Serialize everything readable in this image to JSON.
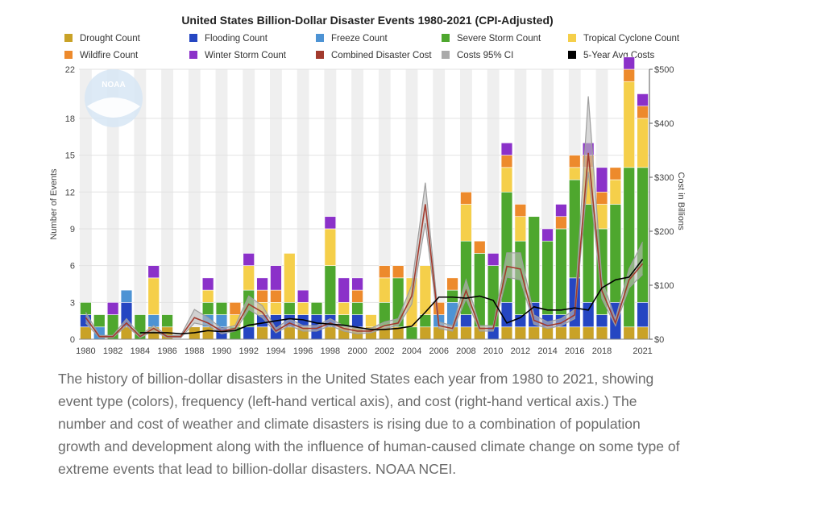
{
  "chart_data": {
    "type": "bar",
    "title": "United States Billion-Dollar Disaster Events 1980-2021 (CPI-Adjusted)",
    "ylabel": "Number of Events",
    "y2label": "Cost in Billions",
    "ylim": [
      0,
      22
    ],
    "y2lim": [
      0,
      500
    ],
    "y_ticks": [
      0,
      3,
      6,
      9,
      12,
      15,
      18,
      22
    ],
    "y2_ticks": [
      "$0",
      "$100",
      "$200",
      "$300",
      "$400",
      "$500"
    ],
    "x_ticks": [
      "1980",
      "1982",
      "1984",
      "1986",
      "1988",
      "1990",
      "1992",
      "1994",
      "1996",
      "1998",
      "2000",
      "2002",
      "2004",
      "2006",
      "2008",
      "2010",
      "2012",
      "2014",
      "2016",
      "2018",
      "2021"
    ],
    "legend_rows": [
      [
        "Drought Count",
        "Flooding Count",
        "Freeze Count",
        "Severe Storm Count",
        "Tropical Cyclone Count"
      ],
      [
        "Wildfire Count",
        "Winter Storm Count",
        "Combined Disaster Cost",
        "Costs 95% CI",
        "5-Year Avg Costs"
      ]
    ],
    "legend_colors": [
      [
        "#c9a227",
        "#2546c2",
        "#4d93d4",
        "#4ea72e",
        "#f5cf4a"
      ],
      [
        "#ed8a2c",
        "#8b31c9",
        "#a23a2d",
        "#aaaaaa",
        "#000000"
      ]
    ],
    "years": [
      1980,
      1981,
      1982,
      1983,
      1984,
      1985,
      1986,
      1987,
      1988,
      1989,
      1990,
      1991,
      1992,
      1993,
      1994,
      1995,
      1996,
      1997,
      1998,
      1999,
      2000,
      2001,
      2002,
      2003,
      2004,
      2005,
      2006,
      2007,
      2008,
      2009,
      2010,
      2011,
      2012,
      2013,
      2014,
      2015,
      2016,
      2017,
      2018,
      2019,
      2020,
      2021
    ],
    "series": [
      {
        "name": "Drought Count",
        "color": "#c9a227",
        "values": [
          1,
          0,
          0,
          1,
          0,
          1,
          1,
          0,
          1,
          1,
          0,
          0,
          0,
          1,
          0,
          1,
          1,
          0,
          1,
          1,
          1,
          1,
          1,
          1,
          0,
          1,
          1,
          1,
          1,
          1,
          0,
          1,
          1,
          1,
          1,
          1,
          1,
          1,
          1,
          0,
          1,
          1
        ]
      },
      {
        "name": "Flooding Count",
        "color": "#2546c2",
        "values": [
          1,
          0,
          0,
          2,
          0,
          0,
          0,
          0,
          0,
          0,
          1,
          0,
          1,
          1,
          2,
          1,
          1,
          2,
          1,
          0,
          1,
          0,
          0,
          0,
          0,
          0,
          0,
          0,
          1,
          0,
          1,
          2,
          1,
          2,
          1,
          1,
          4,
          2,
          1,
          3,
          0,
          2
        ]
      },
      {
        "name": "Freeze Count",
        "color": "#4d93d4",
        "values": [
          0,
          1,
          0,
          1,
          0,
          1,
          0,
          0,
          0,
          1,
          1,
          0,
          0,
          0,
          0,
          0,
          0,
          0,
          0,
          0,
          0,
          0,
          0,
          0,
          0,
          0,
          1,
          2,
          0,
          0,
          0,
          0,
          0,
          0,
          0,
          0,
          0,
          0,
          0,
          0,
          0,
          0
        ]
      },
      {
        "name": "Severe Storm Count",
        "color": "#4ea72e",
        "values": [
          1,
          1,
          2,
          0,
          2,
          0,
          1,
          0,
          0,
          1,
          1,
          1,
          3,
          0,
          0,
          1,
          0,
          1,
          4,
          1,
          1,
          0,
          2,
          4,
          1,
          1,
          0,
          1,
          6,
          6,
          5,
          9,
          6,
          7,
          6,
          7,
          8,
          8,
          7,
          8,
          13,
          11
        ]
      },
      {
        "name": "Tropical Cyclone Count",
        "color": "#f5cf4a",
        "values": [
          0,
          0,
          0,
          0,
          0,
          3,
          0,
          0,
          0,
          1,
          0,
          1,
          2,
          1,
          1,
          4,
          1,
          0,
          3,
          1,
          0,
          1,
          2,
          0,
          4,
          4,
          0,
          0,
          3,
          0,
          0,
          2,
          2,
          0,
          0,
          0,
          1,
          3,
          2,
          2,
          7,
          4
        ]
      },
      {
        "name": "Wildfire Count",
        "color": "#ed8a2c",
        "values": [
          0,
          0,
          0,
          0,
          0,
          0,
          0,
          0,
          0,
          0,
          0,
          1,
          0,
          1,
          1,
          0,
          0,
          0,
          0,
          0,
          1,
          0,
          1,
          1,
          0,
          0,
          1,
          1,
          1,
          1,
          0,
          1,
          1,
          0,
          0,
          1,
          1,
          1,
          1,
          1,
          1,
          1
        ]
      },
      {
        "name": "Winter Storm Count",
        "color": "#8b31c9",
        "values": [
          0,
          0,
          1,
          0,
          0,
          1,
          0,
          0,
          0,
          1,
          0,
          0,
          1,
          1,
          2,
          0,
          1,
          0,
          1,
          2,
          1,
          0,
          0,
          0,
          0,
          0,
          0,
          0,
          0,
          0,
          1,
          1,
          0,
          0,
          1,
          1,
          0,
          1,
          2,
          0,
          1,
          1
        ]
      }
    ],
    "combined_cost": [
      40,
      5,
      5,
      30,
      5,
      20,
      5,
      5,
      40,
      30,
      15,
      20,
      65,
      50,
      15,
      30,
      20,
      20,
      30,
      20,
      15,
      15,
      25,
      30,
      80,
      250,
      25,
      20,
      90,
      20,
      20,
      135,
      130,
      35,
      25,
      30,
      45,
      345,
      90,
      30,
      110,
      140
    ],
    "ci_low": [
      30,
      3,
      3,
      25,
      3,
      15,
      3,
      3,
      30,
      25,
      10,
      15,
      55,
      40,
      12,
      25,
      15,
      15,
      25,
      15,
      10,
      12,
      20,
      25,
      65,
      215,
      20,
      15,
      75,
      15,
      15,
      115,
      110,
      28,
      20,
      25,
      38,
      310,
      75,
      25,
      95,
      120
    ],
    "ci_high": [
      50,
      7,
      7,
      38,
      7,
      25,
      7,
      7,
      55,
      40,
      20,
      25,
      80,
      62,
      20,
      38,
      25,
      25,
      38,
      25,
      20,
      20,
      32,
      38,
      100,
      290,
      32,
      25,
      110,
      25,
      25,
      160,
      160,
      45,
      32,
      38,
      55,
      450,
      110,
      38,
      130,
      180
    ],
    "avg_5yr": [
      null,
      null,
      null,
      null,
      12,
      12,
      12,
      10,
      12,
      16,
      14,
      16,
      26,
      30,
      34,
      38,
      36,
      30,
      28,
      26,
      22,
      18,
      18,
      20,
      24,
      50,
      78,
      78,
      76,
      80,
      72,
      30,
      40,
      60,
      54,
      54,
      58,
      54,
      95,
      110,
      115,
      148
    ],
    "y2_axis_ticks_values": [
      0,
      100,
      200,
      300,
      400,
      500
    ],
    "watermark": "NOAA"
  },
  "caption": "The history of billion-dollar disasters in the United States each year from 1980 to 2021, showing event type (colors), frequency (left-hand vertical axis), and cost (right-hand vertical axis.) The number and cost of weather and climate disasters is rising due to a combination of population growth and development along with the influence of human-caused climate change on some type of extreme events that lead to billion-dollar disasters. NOAA NCEI."
}
